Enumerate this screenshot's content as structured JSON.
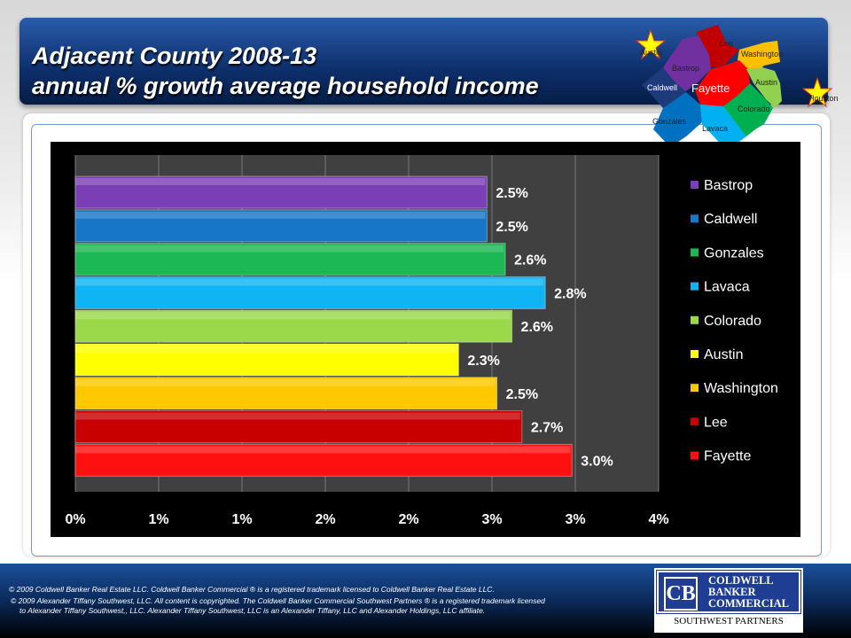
{
  "title": {
    "line1": "Adjacent County 2008-13",
    "line2": "annual % growth average household income"
  },
  "map": {
    "labels": [
      "Austin",
      "Lee",
      "Washington",
      "Bastrop",
      "Caldwell",
      "Fayette",
      "Austin",
      "Colorado",
      "Gonzales",
      "Lavaca",
      "Houston"
    ],
    "colors": {
      "Lee": "#c00000",
      "Washington": "#ffc000",
      "Bastrop": "#7030a0",
      "Caldwell": "#1f3a7a",
      "Fayette": "#ff0000",
      "Austin": "#92d050",
      "Colorado": "#00b050",
      "Gonzales": "#0070c0",
      "Lavaca": "#00b0f0",
      "star": "#ffff00"
    }
  },
  "chart_data": {
    "type": "bar",
    "orientation": "horizontal",
    "categories": [
      "Bastrop",
      "Caldwell",
      "Gonzales",
      "Lavaca",
      "Colorado",
      "Austin",
      "Washington",
      "Lee",
      "Fayette"
    ],
    "values": [
      2.47,
      2.47,
      2.58,
      2.82,
      2.62,
      2.3,
      2.53,
      2.68,
      2.98
    ],
    "data_labels": [
      "2.5%",
      "2.5%",
      "2.6%",
      "2.8%",
      "2.6%",
      "2.3%",
      "2.5%",
      "2.7%",
      "3.0%"
    ],
    "colors": [
      "#7a3fb5",
      "#1876c9",
      "#1cb855",
      "#0fb4f5",
      "#9cd94a",
      "#ffff00",
      "#ffc800",
      "#c80000",
      "#ff1010"
    ],
    "xlim": [
      0,
      3.5
    ],
    "xticks": [
      0,
      0.5,
      1,
      1.5,
      2,
      2.5,
      3,
      3.5
    ],
    "xtick_labels": [
      "0%",
      "1%",
      "1%",
      "2%",
      "2%",
      "3%",
      "3%",
      "4%"
    ],
    "grid": true,
    "legend_position": "right",
    "title": "",
    "xlabel": "",
    "ylabel": ""
  },
  "footer": {
    "line1": "©  2009 Coldwell Banker Real Estate  LLC. Coldwell Banker Commercial ® is a registered trademark licensed to Coldwell Banker Real Estate LLC.",
    "line2": "© 2009 Alexander Tiffany Southwest, LLC. All content is copyrighted. The Coldwell Banker Commercial Southwest Partners ® is a registered trademark licensed",
    "line3": "to Alexander Tiffany Southwest,, LLC.  Alexander Tiffany Southwest, LLC is an Alexander Tiffany, LLC and Alexander Holdings, LLC affiliate.",
    "logo": {
      "line1": "COLDWELL",
      "line2": "BANKER",
      "line3": "COMMERCIAL",
      "sub": "SOUTHWEST PARTNERS"
    }
  }
}
